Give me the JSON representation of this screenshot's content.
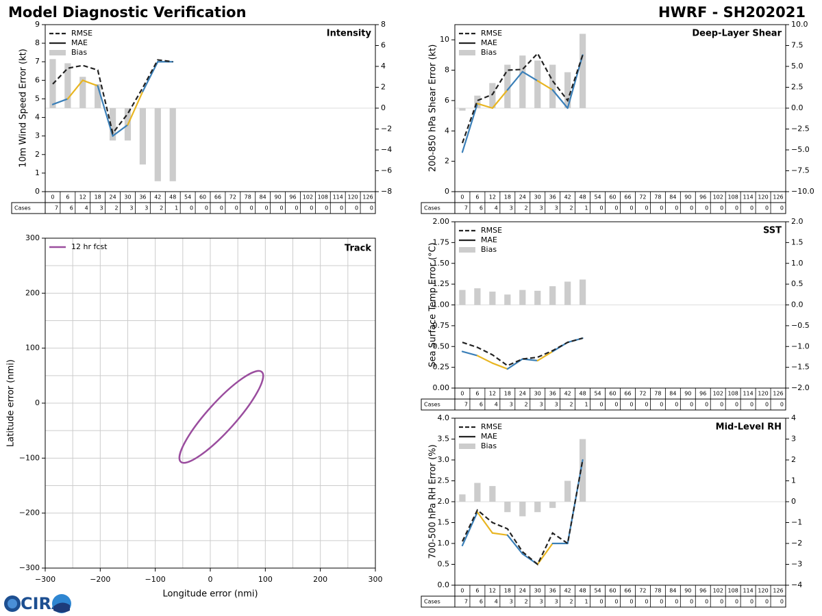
{
  "page": {
    "title_left": "Model Diagnostic Verification",
    "title_right": "HWRF - SH202021",
    "logo_text": "CIRA",
    "cases_label": "Cases"
  },
  "colors": {
    "rmse": "#222222",
    "blue": "#3a7fb8",
    "orange": "#e8b521",
    "bias": "#cccccc",
    "track": "#9a4d9e",
    "grid": "#cccccc"
  },
  "lead_times": [
    "0",
    "6",
    "12",
    "18",
    "24",
    "30",
    "36",
    "42",
    "48",
    "54",
    "60",
    "66",
    "72",
    "78",
    "84",
    "90",
    "96",
    "102",
    "108",
    "114",
    "120",
    "126"
  ],
  "cases": [
    7,
    6,
    4,
    3,
    2,
    3,
    3,
    2,
    1,
    0,
    0,
    0,
    0,
    0,
    0,
    0,
    0,
    0,
    0,
    0,
    0,
    0
  ],
  "chart_data": [
    {
      "id": "intensity",
      "type": "line",
      "title": "Intensity",
      "ylabel": "10m Wind Speed Error (kt)",
      "ylim": [
        0,
        9
      ],
      "yticks": [
        "0",
        "1",
        "2",
        "3",
        "4",
        "5",
        "6",
        "7",
        "8",
        "9"
      ],
      "y2lim": [
        -8,
        8
      ],
      "y2ticks": [
        "−8",
        "−6",
        "−4",
        "−2",
        "0",
        "2",
        "4",
        "6",
        "8"
      ],
      "legend": [
        "RMSE",
        "MAE",
        "Bias"
      ],
      "rmse": [
        5.8,
        6.65,
        6.8,
        6.55,
        3.15,
        4.2,
        5.6,
        7.1,
        7.0
      ],
      "mae": [
        4.7,
        5.0,
        6.0,
        5.7,
        3.0,
        3.6,
        5.4,
        7.0,
        7.0
      ],
      "bias": [
        4.7,
        4.3,
        3.0,
        2.3,
        -3.1,
        -3.1,
        -5.4,
        -7.0,
        -7.0
      ]
    },
    {
      "id": "shear",
      "type": "line",
      "title": "Deep-Layer Shear",
      "ylabel": "200-850 hPa Shear Error (kt)",
      "ylim": [
        0,
        11
      ],
      "yticks": [
        "0",
        "2",
        "4",
        "6",
        "8",
        "10"
      ],
      "y2lim": [
        -10,
        10
      ],
      "y2ticks": [
        "−10.0",
        "−7.5",
        "−5.0",
        "−2.5",
        "0.0",
        "2.5",
        "5.0",
        "7.5",
        "10.0"
      ],
      "legend": [
        "RMSE",
        "MAE",
        "Bias"
      ],
      "rmse": [
        3.2,
        6.0,
        6.4,
        8.0,
        8.05,
        9.1,
        7.3,
        6.0,
        9.0
      ],
      "mae": [
        2.6,
        5.8,
        5.5,
        6.7,
        7.9,
        7.3,
        6.7,
        5.5,
        9.0
      ],
      "bias": [
        -0.3,
        1.5,
        3.0,
        5.2,
        6.3,
        5.7,
        5.2,
        4.3,
        8.9
      ]
    },
    {
      "id": "sst",
      "type": "line",
      "title": "SST",
      "ylabel": "Sea Surface Temp Error (°C)",
      "ylim": [
        0,
        2
      ],
      "yticks": [
        "0.00",
        "0.25",
        "0.50",
        "0.75",
        "1.00",
        "1.25",
        "1.50",
        "1.75",
        "2.00"
      ],
      "y2lim": [
        -2,
        2
      ],
      "y2ticks": [
        "−2.0",
        "−1.5",
        "−1.0",
        "−0.5",
        "0.0",
        "0.5",
        "1.0",
        "1.5",
        "2.0"
      ],
      "legend": [
        "RMSE",
        "MAE",
        "Bias"
      ],
      "rmse": [
        0.55,
        0.49,
        0.4,
        0.27,
        0.35,
        0.37,
        0.45,
        0.55,
        0.6
      ],
      "mae": [
        0.44,
        0.39,
        0.3,
        0.23,
        0.35,
        0.33,
        0.44,
        0.55,
        0.6
      ],
      "bias": [
        0.36,
        0.4,
        0.32,
        0.25,
        0.36,
        0.34,
        0.45,
        0.56,
        0.61
      ]
    },
    {
      "id": "rh",
      "type": "line",
      "title": "Mid-Level RH",
      "ylabel": "700-500 hPa RH Error (%)",
      "ylim": [
        0,
        4
      ],
      "yticks": [
        "0.0",
        "0.5",
        "1.0",
        "1.5",
        "2.0",
        "2.5",
        "3.0",
        "3.5",
        "4.0"
      ],
      "y2lim": [
        -4,
        4
      ],
      "y2ticks": [
        "−4",
        "−3",
        "−2",
        "−1",
        "0",
        "1",
        "2",
        "3",
        "4"
      ],
      "legend": [
        "RMSE",
        "MAE",
        "Bias"
      ],
      "rmse": [
        1.05,
        1.8,
        1.5,
        1.35,
        0.8,
        0.5,
        1.25,
        1.0,
        3.0
      ],
      "mae": [
        0.95,
        1.75,
        1.25,
        1.2,
        0.75,
        0.5,
        1.0,
        1.0,
        3.0
      ],
      "bias": [
        0.35,
        0.9,
        0.75,
        -0.5,
        -0.7,
        -0.5,
        -0.3,
        1.0,
        3.0
      ]
    },
    {
      "id": "track",
      "type": "scatter",
      "title": "Track",
      "xlabel": "Longitude error (nmi)",
      "ylabel": "Latitude error (nmi)",
      "xlim": [
        -300,
        300
      ],
      "ylim": [
        -300,
        300
      ],
      "xticks": [
        "−300",
        "−200",
        "−100",
        "0",
        "100",
        "200",
        "300"
      ],
      "yticks": [
        "−300",
        "−200",
        "−100",
        "0",
        "100",
        "200",
        "300"
      ],
      "legend": [
        "12 hr fcst"
      ],
      "ellipse": {
        "center": [
          20,
          -25
        ],
        "semi_major": 110,
        "semi_minor": 26,
        "angle_deg": 48
      }
    }
  ]
}
